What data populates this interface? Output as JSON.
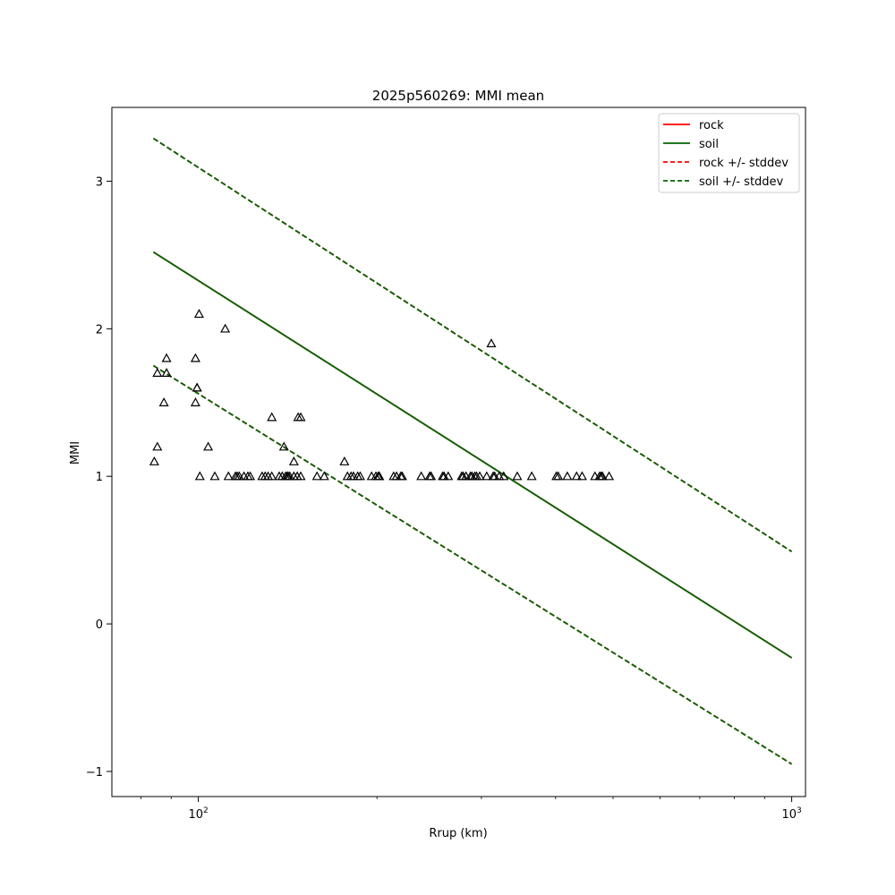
{
  "chart_data": {
    "type": "scatter",
    "title": "2025p560269: MMI mean",
    "xlabel": "Rrup (km)",
    "ylabel": "MMI",
    "xscale": "log",
    "xlim": [
      71.5,
      1055
    ],
    "ylim": [
      -1.17,
      3.5
    ],
    "grid": false,
    "legend_position": "top-right",
    "x_ticks": [
      {
        "value": 100,
        "base": "10",
        "exp": "2"
      },
      {
        "value": 1000,
        "base": "10",
        "exp": "3"
      }
    ],
    "y_ticks": [
      {
        "value": -1,
        "label": "−1"
      },
      {
        "value": 0,
        "label": "0"
      },
      {
        "value": 1,
        "label": "1"
      },
      {
        "value": 2,
        "label": "2"
      },
      {
        "value": 3,
        "label": "3"
      }
    ],
    "series": [
      {
        "name": "rock",
        "style": "solid",
        "color": "#ff0000",
        "x": [
          84,
          1000
        ],
        "y": [
          2.52,
          -0.23
        ]
      },
      {
        "name": "soil",
        "style": "solid",
        "color": "#006400",
        "x": [
          84,
          1000
        ],
        "y": [
          2.52,
          -0.23
        ]
      },
      {
        "name": "rock +/- stddev",
        "style": "dashed",
        "color": "#ff0000",
        "upper": {
          "x": [
            84,
            1000
          ],
          "y": [
            3.29,
            0.49
          ]
        },
        "lower": {
          "x": [
            84,
            1000
          ],
          "y": [
            1.75,
            -0.95
          ]
        }
      },
      {
        "name": "soil +/- stddev",
        "style": "dashed",
        "color": "#006400",
        "upper": {
          "x": [
            84,
            1000
          ],
          "y": [
            3.29,
            0.49
          ]
        },
        "lower": {
          "x": [
            84,
            1000
          ],
          "y": [
            1.75,
            -0.95
          ]
        }
      }
    ],
    "observations": {
      "marker": "triangle-open",
      "x": [
        84.3,
        85.3,
        85.3,
        87.5,
        88.4,
        88.4,
        98.9,
        98.9,
        99.5,
        99.5,
        100.3,
        100.6,
        103.9,
        106.6,
        111.0,
        112.4,
        115.5,
        116.3,
        117.2,
        119.4,
        121.2,
        122.3,
        128.1,
        129.6,
        131.1,
        133.0,
        133.0,
        136.9,
        138.5,
        139.4,
        140.3,
        141.2,
        141.7,
        142.6,
        144.9,
        144.9,
        146.8,
        147.3,
        148.8,
        148.8,
        158.5,
        163.0,
        176.3,
        178.4,
        180.9,
        182.6,
        185.6,
        187.4,
        195.9,
        199.2,
        200.9,
        201.8,
        201.8,
        213.4,
        215.8,
        219.4,
        220.6,
        237.5,
        245.4,
        246.8,
        258.1,
        259.5,
        263.7,
        277.9,
        279.4,
        282.6,
        287.5,
        289.2,
        292.4,
        294.4,
        298.0,
        306.2,
        311.7,
        314.0,
        315.8,
        321.4,
        327.1,
        344.8,
        364.7,
        401.2,
        404.1,
        418.7,
        434.0,
        443.4,
        466.1,
        474.5,
        477.3,
        479.8,
        492.3
      ],
      "y": [
        1.1,
        1.7,
        1.2,
        1.5,
        1.8,
        1.7,
        1.5,
        1.8,
        1.6,
        1.6,
        2.1,
        1.0,
        1.2,
        1.0,
        2.0,
        1.0,
        1.0,
        1.0,
        1.0,
        1.0,
        1.0,
        1.0,
        1.0,
        1.0,
        1.0,
        1.0,
        1.4,
        1.0,
        1.0,
        1.2,
        1.0,
        1.0,
        1.0,
        1.0,
        1.0,
        1.1,
        1.0,
        1.4,
        1.0,
        1.4,
        1.0,
        1.0,
        1.1,
        1.0,
        1.0,
        1.0,
        1.0,
        1.0,
        1.0,
        1.0,
        1.0,
        1.0,
        1.0,
        1.0,
        1.0,
        1.0,
        1.0,
        1.0,
        1.0,
        1.0,
        1.0,
        1.0,
        1.0,
        1.0,
        1.0,
        1.0,
        1.0,
        1.0,
        1.0,
        1.0,
        1.0,
        1.0,
        1.9,
        1.0,
        1.0,
        1.0,
        1.0,
        1.0,
        1.0,
        1.0,
        1.0,
        1.0,
        1.0,
        1.0,
        1.0,
        1.0,
        1.0,
        1.0,
        1.0
      ]
    }
  }
}
